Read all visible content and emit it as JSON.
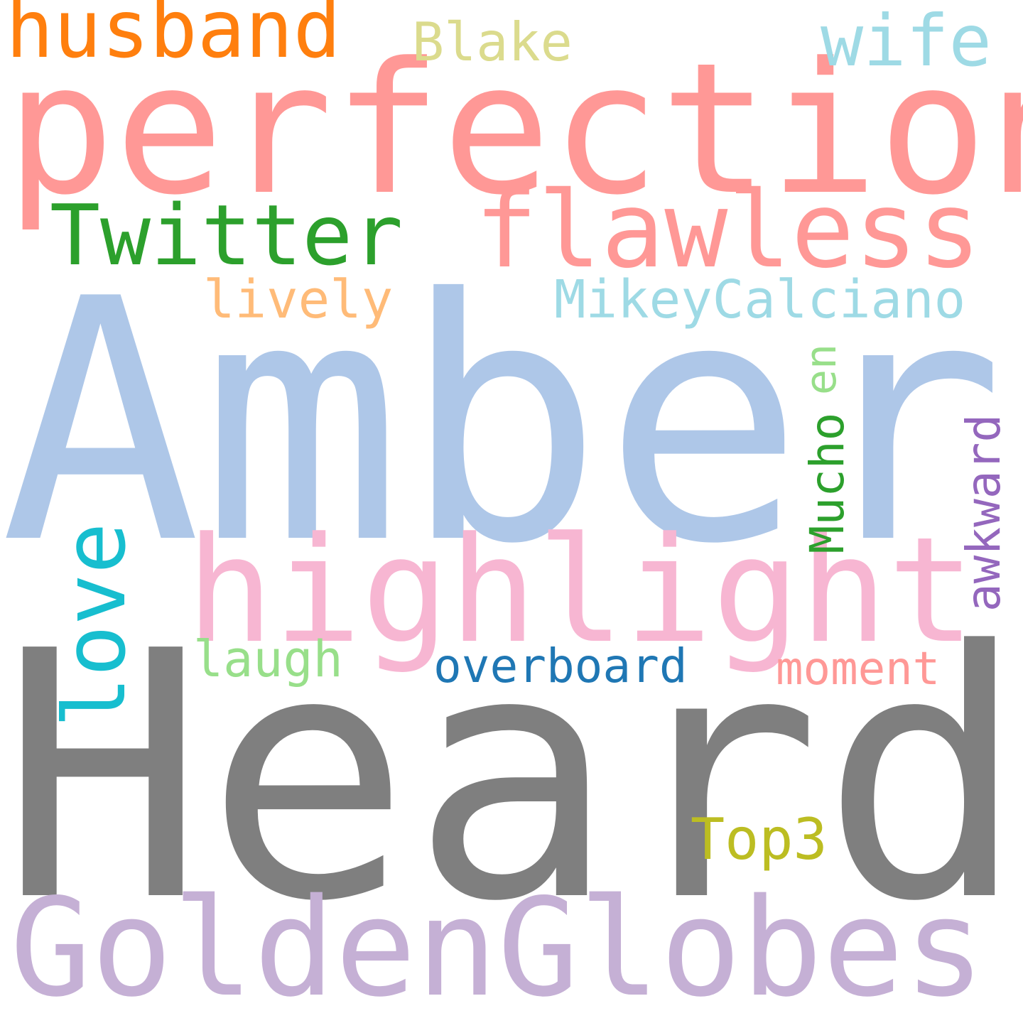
{
  "word_cloud": {
    "background": "#ffffff",
    "words": {
      "amber": {
        "text": "Amber",
        "color": "#aec7e8"
      },
      "heard": {
        "text": "Heard",
        "color": "#7f7f7f"
      },
      "perfection": {
        "text": "perfection",
        "color": "#ff9896"
      },
      "goldenglobes": {
        "text": "GoldenGlobes",
        "color": "#c5b0d5"
      },
      "highlight": {
        "text": "highlight",
        "color": "#f7b6d2"
      },
      "flawless": {
        "text": "flawless",
        "color": "#ff9896"
      },
      "twitter": {
        "text": "Twitter",
        "color": "#2ca02c"
      },
      "husband": {
        "text": "husband",
        "color": "#ff7f0e"
      },
      "wife": {
        "text": "wife",
        "color": "#9edae5"
      },
      "blake": {
        "text": "Blake",
        "color": "#dbdb8d"
      },
      "lively": {
        "text": "lively",
        "color": "#ffbb78"
      },
      "mikey": {
        "text": "MikeyCalciano",
        "color": "#9edae5"
      },
      "overboard": {
        "text": "overboard",
        "color": "#1f77b4"
      },
      "moment": {
        "text": "moment",
        "color": "#ff9896"
      },
      "laugh": {
        "text": "laugh",
        "color": "#98df8a"
      },
      "top3": {
        "text": "Top3",
        "color": "#bcbd22"
      },
      "love": {
        "text": "love",
        "color": "#17becf"
      },
      "mucho": {
        "text": "Mucho",
        "color": "#2ca02c"
      },
      "en": {
        "text": "en",
        "color": "#98df8a"
      },
      "awkward": {
        "text": "awkward",
        "color": "#9467bd"
      }
    }
  }
}
